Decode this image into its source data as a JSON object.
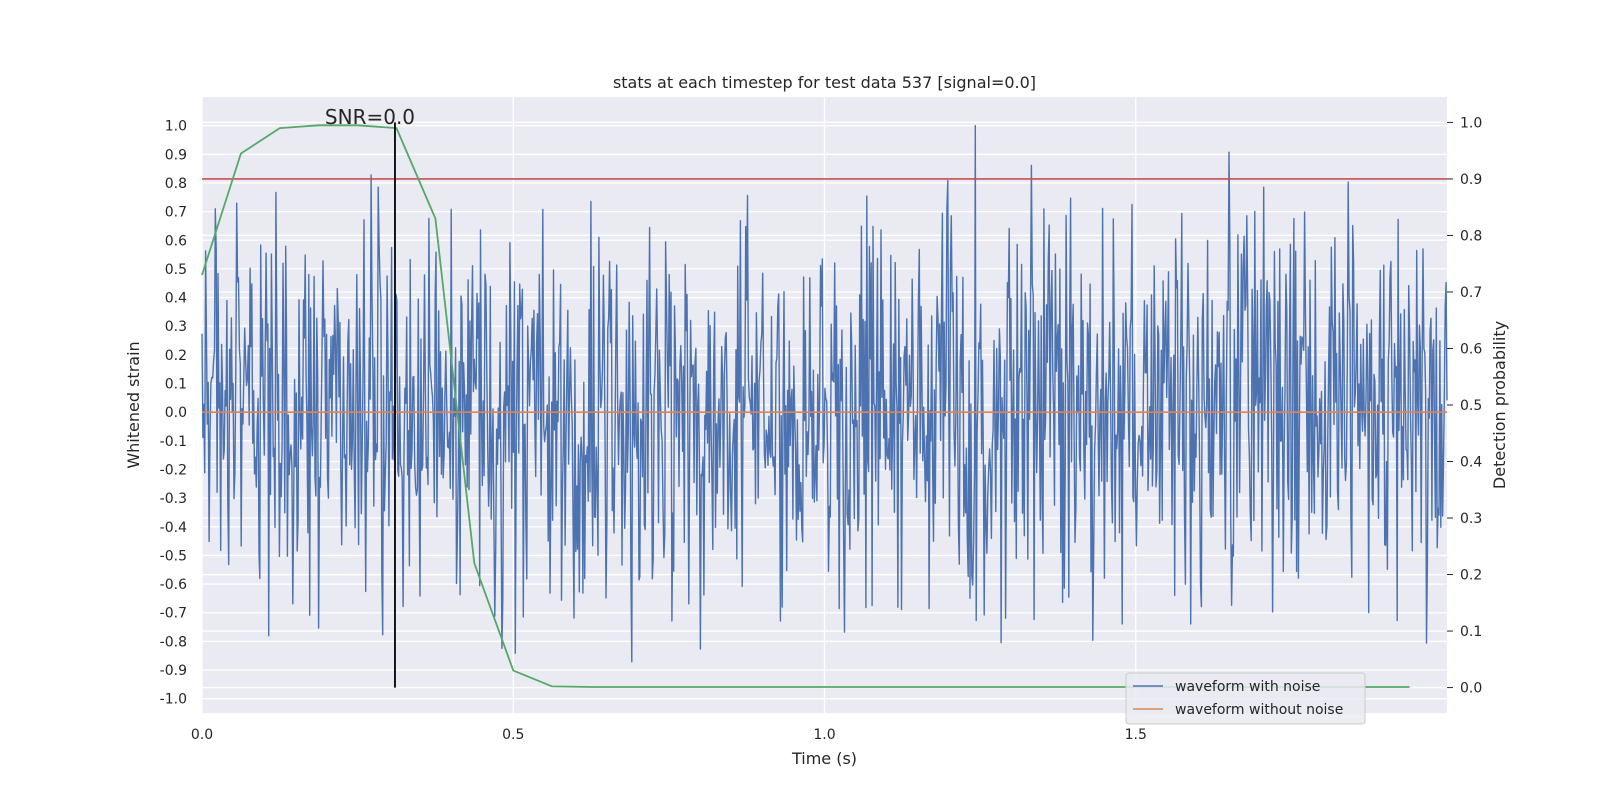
{
  "chart_data": {
    "type": "line",
    "title": "stats at each timestep for test data 537 [signal=0.0]",
    "xlabel": "Time (s)",
    "ylabel": "Whitened strain",
    "y2label": "Detection probability",
    "xlim": [
      0.0,
      2.0
    ],
    "ylim": [
      -1.05,
      1.1
    ],
    "y2lim": [
      -0.045,
      1.045
    ],
    "xticks": [
      0.0,
      0.5,
      1.0,
      1.5
    ],
    "yticks": [
      -1.0,
      -0.9,
      -0.8,
      -0.7,
      -0.6,
      -0.5,
      -0.4,
      -0.3,
      -0.2,
      -0.1,
      0.0,
      0.1,
      0.2,
      0.3,
      0.4,
      0.5,
      0.6,
      0.7,
      0.8,
      0.9,
      1.0
    ],
    "y2ticks": [
      0.0,
      0.1,
      0.2,
      0.3,
      0.4,
      0.5,
      0.6,
      0.7,
      0.8,
      0.9,
      1.0
    ],
    "grid": true,
    "legend_position": "lower-right",
    "annotation": {
      "text": "SNR=0.0",
      "x": 0.31
    },
    "noise_seed": 537,
    "noise_samples": 1400,
    "threshold": {
      "axis": "right",
      "value": 0.9,
      "color": "#c44e52"
    },
    "marker_line": {
      "x": 0.31,
      "y_from": 0.0,
      "y_to": 1.0,
      "color": "#000000"
    },
    "series": [
      {
        "name": "waveform with noise",
        "axis": "left",
        "color": "#4c72b0"
      },
      {
        "name": "waveform without noise",
        "axis": "left",
        "color": "#dd8452",
        "x": [
          0.0,
          2.0
        ],
        "y": [
          0.0,
          0.0
        ]
      },
      {
        "axis": "right",
        "color": "#55a868",
        "x": [
          0.0,
          0.0625,
          0.125,
          0.1875,
          0.25,
          0.3125,
          0.375,
          0.4375,
          0.5,
          0.5625,
          0.625,
          0.75,
          1.0,
          1.25,
          1.5,
          1.75,
          1.94
        ],
        "y": [
          0.73,
          0.945,
          0.99,
          0.995,
          0.995,
          0.99,
          0.83,
          0.22,
          0.03,
          0.002,
          0.001,
          0.001,
          0.001,
          0.001,
          0.001,
          0.001,
          0.001
        ]
      }
    ]
  }
}
